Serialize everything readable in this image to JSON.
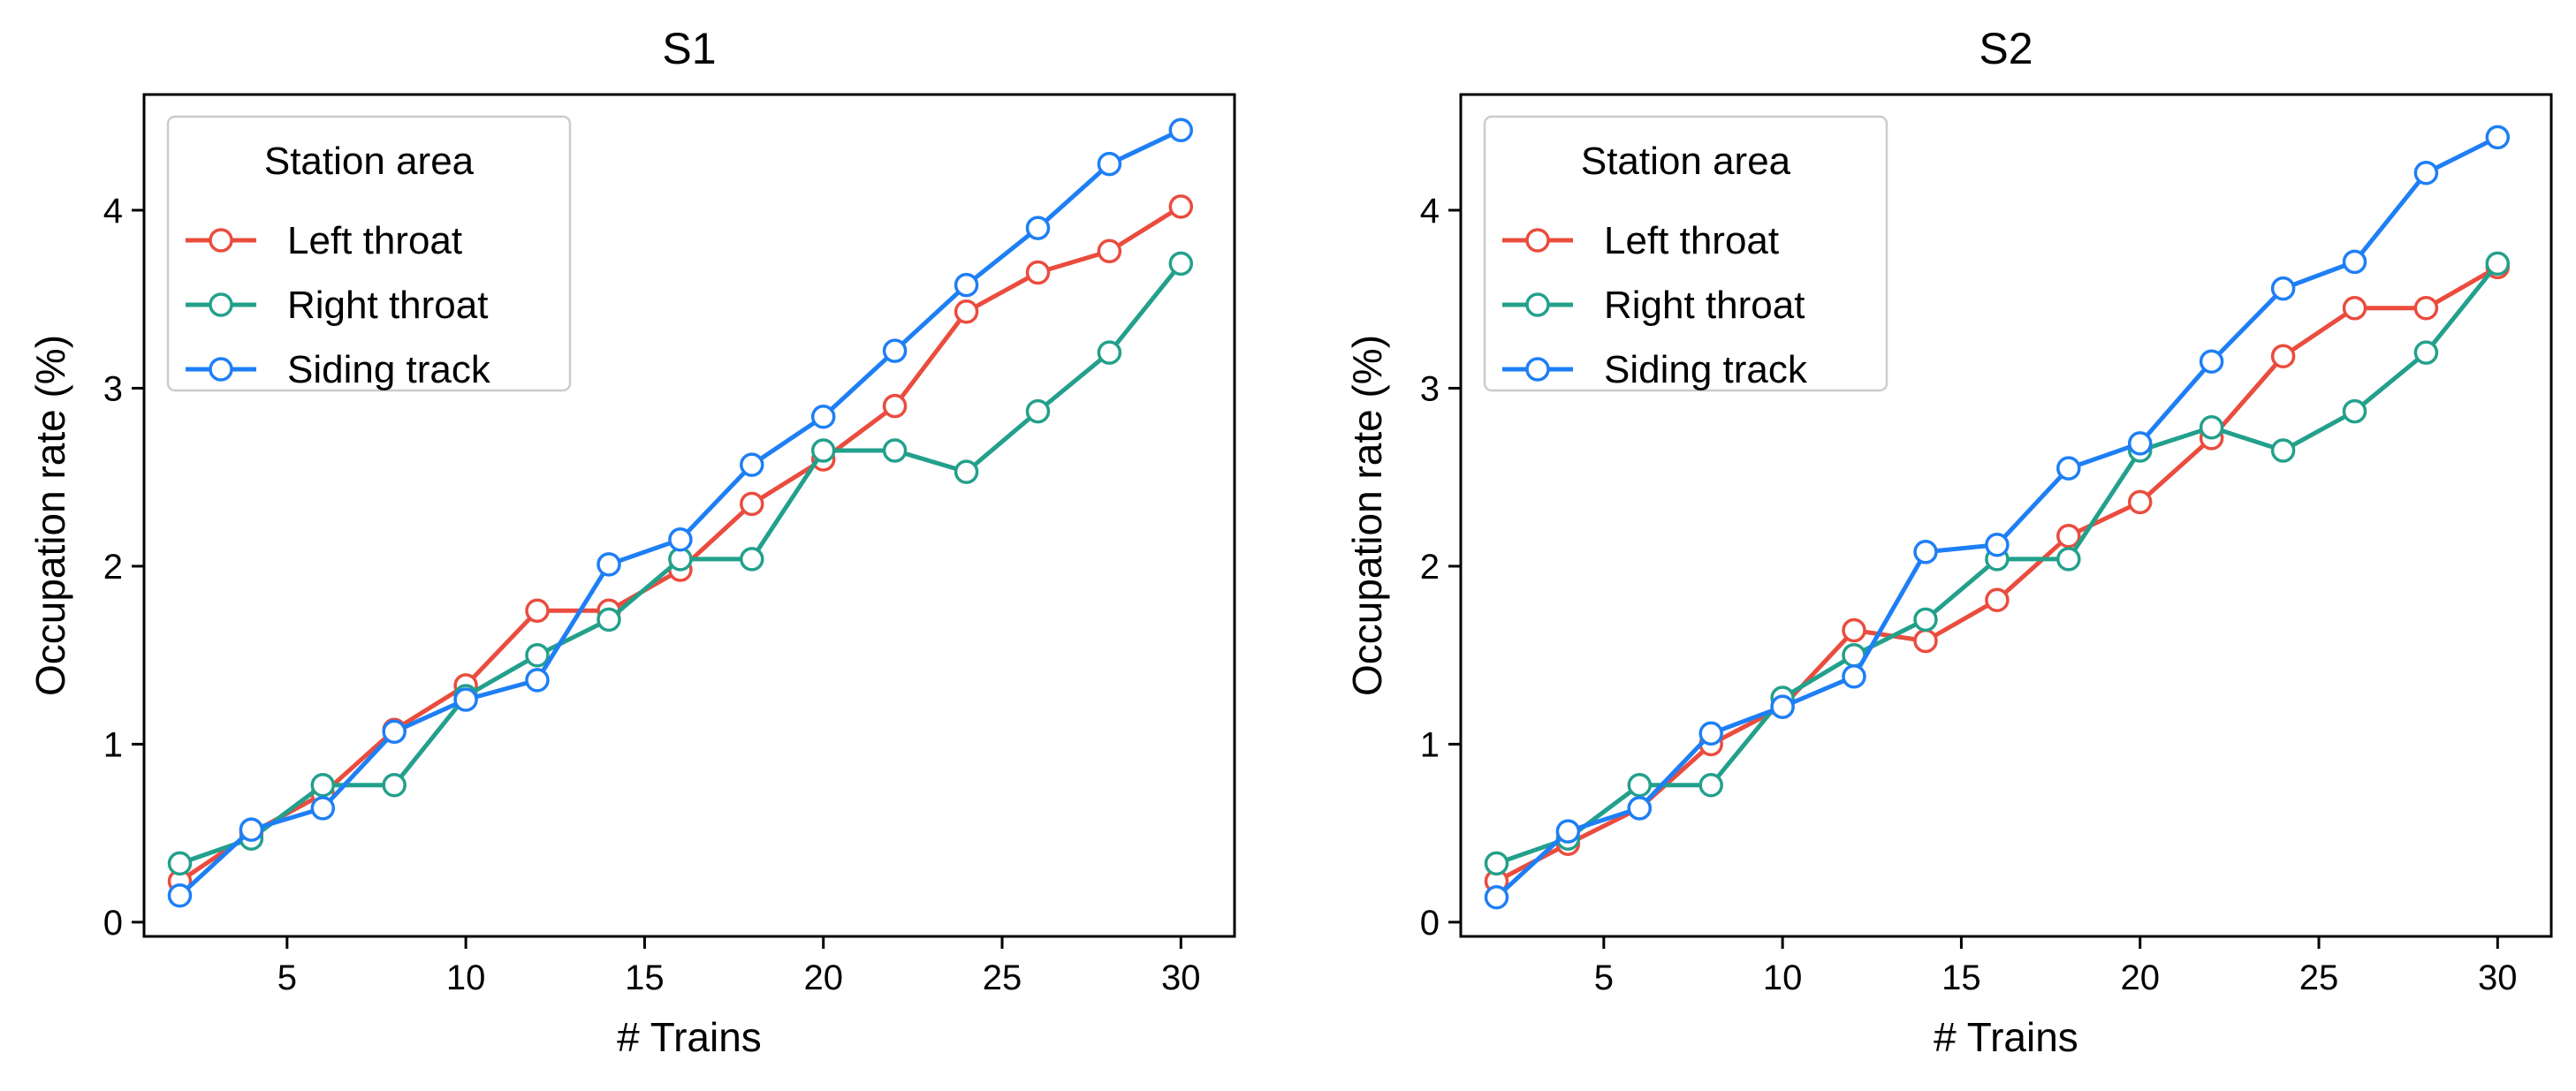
{
  "chart_data": [
    {
      "type": "line",
      "title": "S1",
      "xlabel": "# Trains",
      "ylabel": "Occupation rate (%)",
      "xlim": [
        1,
        31.5
      ],
      "ylim": [
        -0.08,
        4.65
      ],
      "xticks": [
        5,
        10,
        15,
        20,
        25,
        30
      ],
      "yticks": [
        0,
        1,
        2,
        3,
        4
      ],
      "grid": false,
      "legend": {
        "title": "Station area",
        "position": "top-left"
      },
      "x": [
        2,
        4,
        6,
        8,
        10,
        12,
        14,
        16,
        18,
        20,
        22,
        24,
        26,
        28,
        30
      ],
      "series": [
        {
          "name": "Left throat",
          "color": "#ea4c3e",
          "values": [
            0.23,
            0.5,
            0.72,
            1.08,
            1.33,
            1.75,
            1.75,
            1.98,
            2.35,
            2.6,
            2.9,
            3.43,
            3.65,
            3.77,
            4.02
          ]
        },
        {
          "name": "Right throat",
          "color": "#23a08c",
          "values": [
            0.33,
            0.47,
            0.77,
            0.77,
            1.27,
            1.5,
            1.7,
            2.04,
            2.04,
            2.65,
            2.65,
            2.53,
            2.87,
            3.2,
            3.7
          ]
        },
        {
          "name": "Siding track",
          "color": "#1e7ff5",
          "values": [
            0.15,
            0.52,
            0.64,
            1.07,
            1.25,
            1.36,
            2.01,
            2.15,
            2.57,
            2.84,
            3.21,
            3.58,
            3.9,
            4.26,
            4.45
          ]
        }
      ]
    },
    {
      "type": "line",
      "title": "S2",
      "xlabel": "# Trains",
      "ylabel": "Occupation rate (%)",
      "xlim": [
        1,
        31.5
      ],
      "ylim": [
        -0.08,
        4.65
      ],
      "xticks": [
        5,
        10,
        15,
        20,
        25,
        30
      ],
      "yticks": [
        0,
        1,
        2,
        3,
        4
      ],
      "grid": false,
      "legend": {
        "title": "Station area",
        "position": "top-left"
      },
      "x": [
        2,
        4,
        6,
        8,
        10,
        12,
        14,
        16,
        18,
        20,
        22,
        24,
        26,
        28,
        30
      ],
      "series": [
        {
          "name": "Left throat",
          "color": "#ea4c3e",
          "values": [
            0.23,
            0.44,
            0.64,
            1.0,
            1.21,
            1.64,
            1.58,
            1.81,
            2.17,
            2.36,
            2.72,
            3.18,
            3.45,
            3.45,
            3.68
          ]
        },
        {
          "name": "Right throat",
          "color": "#23a08c",
          "values": [
            0.33,
            0.47,
            0.77,
            0.77,
            1.26,
            1.5,
            1.7,
            2.04,
            2.04,
            2.65,
            2.78,
            2.65,
            2.87,
            3.2,
            3.7
          ]
        },
        {
          "name": "Siding track",
          "color": "#1e7ff5",
          "values": [
            0.14,
            0.51,
            0.64,
            1.06,
            1.21,
            1.38,
            2.08,
            2.12,
            2.55,
            2.69,
            3.15,
            3.56,
            3.71,
            4.21,
            4.41
          ]
        }
      ]
    }
  ]
}
